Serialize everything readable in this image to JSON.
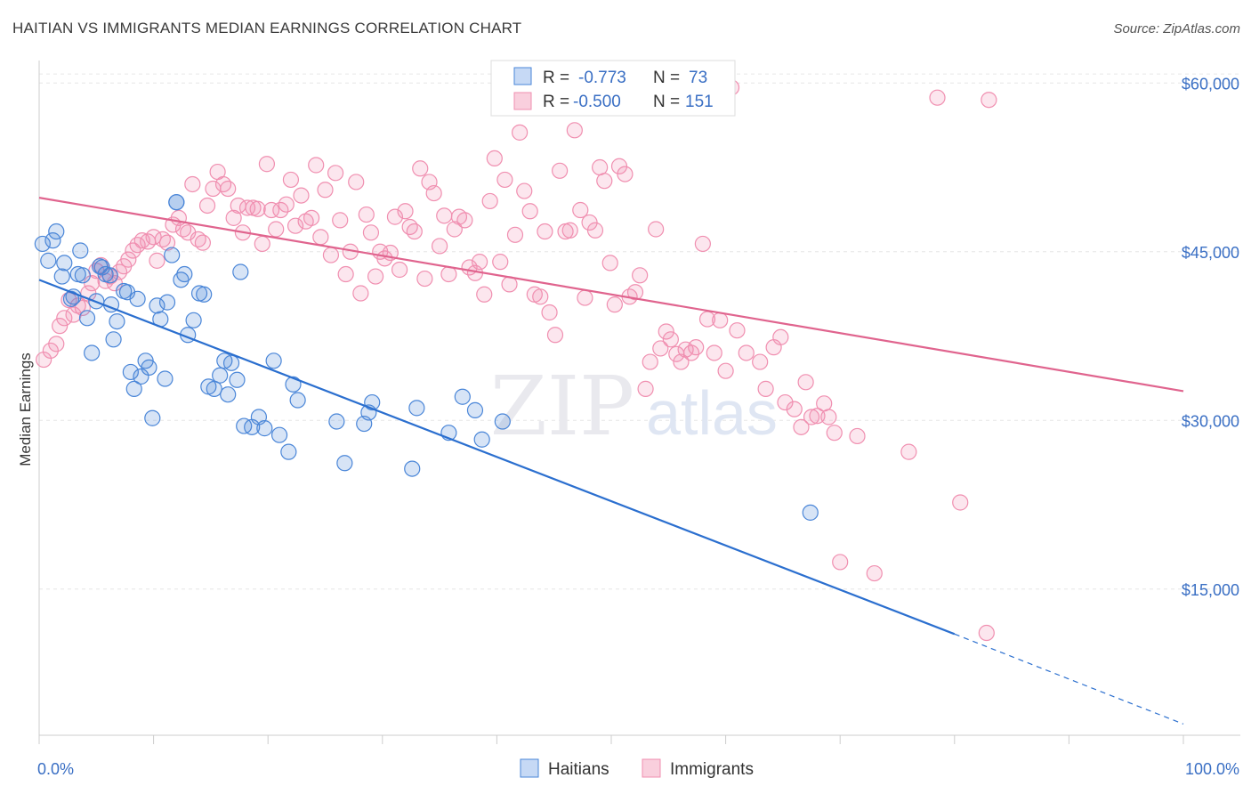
{
  "header": {
    "title": "HAITIAN VS IMMIGRANTS MEDIAN EARNINGS CORRELATION CHART",
    "source": "Source: ZipAtlas.com"
  },
  "watermark": {
    "zip": "ZIP",
    "atlas": "atlas"
  },
  "colors": {
    "haitians": "#4a86d8",
    "haitians_line": "#2b6fcf",
    "immigrants": "#f08fb0",
    "immigrants_line": "#e0648e"
  },
  "legend": {
    "rows": [
      {
        "r_label": "R =",
        "r_value": "-0.773",
        "n_label": "N =",
        "n_value": "73"
      },
      {
        "r_label": "R =",
        "r_value": "-0.500",
        "n_label": "N =",
        "n_value": "151"
      }
    ]
  },
  "bottom_legend": {
    "haitians": "Haitians",
    "immigrants": "Immigrants"
  },
  "chart_data": {
    "type": "scatter",
    "title": "HAITIAN VS IMMIGRANTS MEDIAN EARNINGS CORRELATION CHART",
    "xlabel": "",
    "ylabel": "Median Earnings",
    "xlim": [
      0,
      100
    ],
    "ylim": [
      2000,
      62000
    ],
    "x_tick_labels": [
      "0.0%",
      "100.0%"
    ],
    "y_ticks": [
      15000,
      30000,
      45000,
      60000
    ],
    "y_tick_labels": [
      "$15,000",
      "$30,000",
      "$45,000",
      "$60,000"
    ],
    "grid": true,
    "legend_position": "top-center",
    "series": [
      {
        "name": "Haitians",
        "r": -0.773,
        "n": 73,
        "trend": {
          "x0": 0,
          "y0": 42500,
          "x1": 80,
          "y1": 11000,
          "dashed_to_x": 100,
          "dashed_to_y": 3000
        },
        "points": [
          [
            0.3,
            45700
          ],
          [
            0.8,
            44200
          ],
          [
            1.2,
            46000
          ],
          [
            1.5,
            46800
          ],
          [
            2.0,
            42800
          ],
          [
            2.2,
            44000
          ],
          [
            2.8,
            40800
          ],
          [
            3.0,
            41000
          ],
          [
            3.4,
            43000
          ],
          [
            3.6,
            45100
          ],
          [
            3.8,
            42900
          ],
          [
            4.2,
            39100
          ],
          [
            4.6,
            36000
          ],
          [
            5.0,
            40600
          ],
          [
            5.3,
            43700
          ],
          [
            5.8,
            43000
          ],
          [
            6.2,
            42900
          ],
          [
            6.3,
            40300
          ],
          [
            6.5,
            37200
          ],
          [
            6.8,
            38800
          ],
          [
            7.4,
            41500
          ],
          [
            7.7,
            41400
          ],
          [
            8.0,
            34300
          ],
          [
            8.3,
            32800
          ],
          [
            8.6,
            40800
          ],
          [
            8.9,
            33900
          ],
          [
            9.3,
            35300
          ],
          [
            9.6,
            34700
          ],
          [
            9.9,
            30200
          ],
          [
            10.3,
            40200
          ],
          [
            10.6,
            39000
          ],
          [
            11.0,
            33700
          ],
          [
            11.2,
            40500
          ],
          [
            11.6,
            44700
          ],
          [
            12.0,
            49400
          ],
          [
            12.4,
            42500
          ],
          [
            12.7,
            43000
          ],
          [
            13.0,
            37600
          ],
          [
            13.5,
            38900
          ],
          [
            14.0,
            41300
          ],
          [
            14.4,
            41200
          ],
          [
            14.8,
            33000
          ],
          [
            15.3,
            32800
          ],
          [
            15.8,
            34000
          ],
          [
            16.2,
            35300
          ],
          [
            16.5,
            32300
          ],
          [
            16.8,
            35100
          ],
          [
            17.3,
            33600
          ],
          [
            17.6,
            43200
          ],
          [
            17.9,
            29500
          ],
          [
            18.6,
            29400
          ],
          [
            19.2,
            30300
          ],
          [
            19.7,
            29300
          ],
          [
            20.5,
            35300
          ],
          [
            21.0,
            28700
          ],
          [
            21.8,
            27200
          ],
          [
            22.2,
            33200
          ],
          [
            22.6,
            31800
          ],
          [
            26.0,
            29900
          ],
          [
            26.7,
            26200
          ],
          [
            28.4,
            29700
          ],
          [
            28.8,
            30700
          ],
          [
            29.1,
            31600
          ],
          [
            32.6,
            25700
          ],
          [
            33.0,
            31100
          ],
          [
            35.8,
            28900
          ],
          [
            37.0,
            32100
          ],
          [
            38.1,
            30900
          ],
          [
            38.7,
            28300
          ],
          [
            40.5,
            29900
          ],
          [
            67.4,
            21800
          ],
          [
            12.0,
            49400
          ],
          [
            5.5,
            43600
          ]
        ]
      },
      {
        "name": "Immigrants",
        "r": -0.5,
        "n": 151,
        "trend": {
          "x0": 0,
          "y0": 49800,
          "x1": 100,
          "y1": 32600
        },
        "points": [
          [
            0.4,
            35400
          ],
          [
            1.0,
            36200
          ],
          [
            1.5,
            36800
          ],
          [
            1.8,
            38400
          ],
          [
            2.2,
            39100
          ],
          [
            2.6,
            40700
          ],
          [
            3.0,
            39400
          ],
          [
            3.4,
            40200
          ],
          [
            3.8,
            40000
          ],
          [
            4.3,
            41300
          ],
          [
            4.6,
            42200
          ],
          [
            5.0,
            43300
          ],
          [
            5.4,
            43800
          ],
          [
            5.8,
            42400
          ],
          [
            6.2,
            42800
          ],
          [
            6.6,
            42200
          ],
          [
            7.0,
            43200
          ],
          [
            7.4,
            43700
          ],
          [
            7.8,
            44300
          ],
          [
            8.2,
            45100
          ],
          [
            8.6,
            45600
          ],
          [
            9.0,
            46000
          ],
          [
            9.5,
            45900
          ],
          [
            10.0,
            46300
          ],
          [
            10.3,
            44200
          ],
          [
            10.8,
            46100
          ],
          [
            11.2,
            45800
          ],
          [
            11.7,
            47400
          ],
          [
            12.2,
            48000
          ],
          [
            12.6,
            47000
          ],
          [
            13.0,
            46700
          ],
          [
            13.4,
            51000
          ],
          [
            13.9,
            46100
          ],
          [
            14.3,
            45800
          ],
          [
            14.7,
            49100
          ],
          [
            15.2,
            50600
          ],
          [
            15.6,
            52100
          ],
          [
            16.1,
            51000
          ],
          [
            16.5,
            50600
          ],
          [
            17.0,
            48000
          ],
          [
            17.4,
            49100
          ],
          [
            17.8,
            46700
          ],
          [
            18.2,
            48900
          ],
          [
            18.7,
            48900
          ],
          [
            19.1,
            48800
          ],
          [
            19.5,
            45700
          ],
          [
            19.9,
            52800
          ],
          [
            20.3,
            48700
          ],
          [
            20.7,
            47000
          ],
          [
            21.1,
            48700
          ],
          [
            21.6,
            49200
          ],
          [
            22.0,
            51400
          ],
          [
            22.4,
            47300
          ],
          [
            22.9,
            50000
          ],
          [
            23.3,
            47700
          ],
          [
            23.8,
            48000
          ],
          [
            24.2,
            52700
          ],
          [
            24.6,
            46300
          ],
          [
            25.0,
            50500
          ],
          [
            25.5,
            44700
          ],
          [
            25.9,
            52000
          ],
          [
            26.3,
            47800
          ],
          [
            26.8,
            43000
          ],
          [
            27.2,
            45000
          ],
          [
            27.7,
            51200
          ],
          [
            28.1,
            41300
          ],
          [
            28.6,
            48300
          ],
          [
            29.0,
            46700
          ],
          [
            29.4,
            42800
          ],
          [
            29.8,
            45000
          ],
          [
            30.2,
            44400
          ],
          [
            30.7,
            44900
          ],
          [
            31.1,
            48100
          ],
          [
            31.5,
            43400
          ],
          [
            32.0,
            48600
          ],
          [
            32.4,
            47200
          ],
          [
            32.8,
            46800
          ],
          [
            33.3,
            52400
          ],
          [
            33.7,
            42600
          ],
          [
            34.1,
            51200
          ],
          [
            34.5,
            50200
          ],
          [
            35.0,
            45500
          ],
          [
            35.4,
            48200
          ],
          [
            35.8,
            43000
          ],
          [
            36.3,
            47000
          ],
          [
            36.7,
            48100
          ],
          [
            37.2,
            47800
          ],
          [
            37.6,
            43600
          ],
          [
            38.1,
            43100
          ],
          [
            38.5,
            44100
          ],
          [
            38.9,
            41200
          ],
          [
            39.4,
            49500
          ],
          [
            39.8,
            53300
          ],
          [
            40.3,
            44100
          ],
          [
            40.7,
            51400
          ],
          [
            41.1,
            42100
          ],
          [
            41.6,
            46500
          ],
          [
            42.0,
            55600
          ],
          [
            42.4,
            50400
          ],
          [
            42.9,
            48600
          ],
          [
            43.3,
            41200
          ],
          [
            43.8,
            41000
          ],
          [
            44.2,
            46800
          ],
          [
            44.6,
            39600
          ],
          [
            45.1,
            37600
          ],
          [
            45.5,
            52200
          ],
          [
            46.0,
            46800
          ],
          [
            46.4,
            46900
          ],
          [
            46.8,
            55800
          ],
          [
            47.3,
            48700
          ],
          [
            47.7,
            40900
          ],
          [
            48.1,
            47600
          ],
          [
            48.6,
            46900
          ],
          [
            49.0,
            52500
          ],
          [
            49.4,
            51300
          ],
          [
            49.9,
            44000
          ],
          [
            50.3,
            40300
          ],
          [
            50.7,
            52600
          ],
          [
            51.2,
            51900
          ],
          [
            51.6,
            41000
          ],
          [
            52.1,
            41400
          ],
          [
            52.5,
            42900
          ],
          [
            53.0,
            32800
          ],
          [
            53.4,
            35200
          ],
          [
            53.9,
            47000
          ],
          [
            54.3,
            36400
          ],
          [
            54.8,
            37900
          ],
          [
            55.2,
            37200
          ],
          [
            55.7,
            35900
          ],
          [
            56.1,
            35200
          ],
          [
            56.5,
            36300
          ],
          [
            57.0,
            36000
          ],
          [
            57.4,
            36500
          ],
          [
            58.0,
            45700
          ],
          [
            58.4,
            39000
          ],
          [
            59.0,
            36000
          ],
          [
            59.5,
            38900
          ],
          [
            60.0,
            34400
          ],
          [
            60.5,
            59600
          ],
          [
            61.0,
            38000
          ],
          [
            61.8,
            36000
          ],
          [
            63.0,
            35200
          ],
          [
            63.5,
            32800
          ],
          [
            64.2,
            36500
          ],
          [
            64.8,
            37400
          ],
          [
            65.2,
            31600
          ],
          [
            66.0,
            31000
          ],
          [
            66.6,
            29400
          ],
          [
            67.0,
            33400
          ],
          [
            67.5,
            30300
          ],
          [
            68.0,
            30400
          ],
          [
            68.6,
            31500
          ],
          [
            69.0,
            30300
          ],
          [
            69.5,
            28900
          ],
          [
            70.0,
            17400
          ],
          [
            71.5,
            28600
          ],
          [
            73.0,
            16400
          ],
          [
            76.0,
            27200
          ],
          [
            78.5,
            58700
          ],
          [
            80.5,
            22700
          ],
          [
            82.8,
            11100
          ],
          [
            83.0,
            58500
          ]
        ]
      }
    ]
  }
}
